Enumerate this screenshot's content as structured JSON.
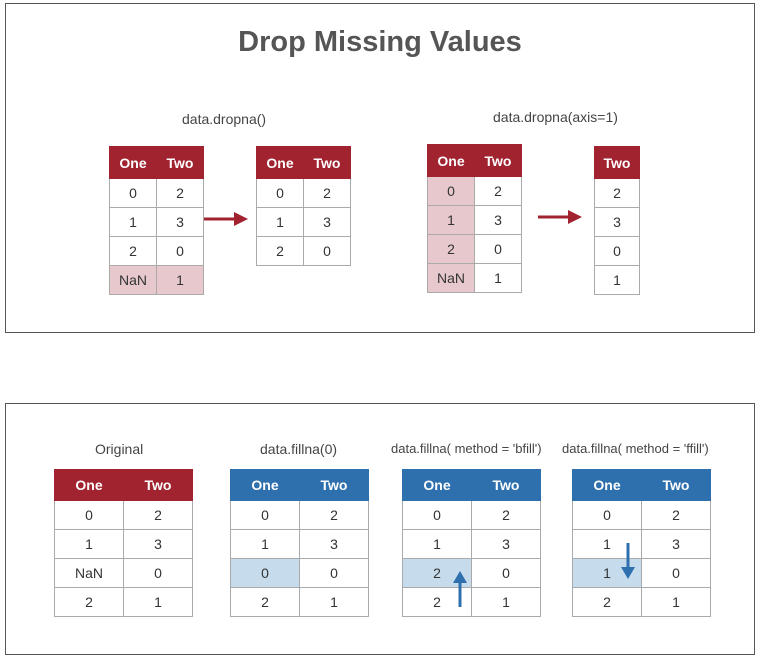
{
  "title": "Drop Missing Values",
  "colors": {
    "red_header": "#a0232f",
    "blue_header": "#2d70ad",
    "red_highlight": "#e7c9cd",
    "blue_highlight": "#c6dcec",
    "arrow_red": "#a0232f",
    "arrow_blue": "#2d70ad"
  },
  "top": {
    "captions": {
      "dropna": "data.dropna()",
      "dropna_axis": "data.dropna(axis=1)"
    },
    "tables": {
      "t1": {
        "headers": [
          "One",
          "Two"
        ],
        "rows": [
          [
            "0",
            "2"
          ],
          [
            "1",
            "3"
          ],
          [
            "2",
            "0"
          ],
          [
            "NaN",
            "1"
          ]
        ]
      },
      "t2": {
        "headers": [
          "One",
          "Two"
        ],
        "rows": [
          [
            "0",
            "2"
          ],
          [
            "1",
            "3"
          ],
          [
            "2",
            "0"
          ]
        ]
      },
      "t3": {
        "headers": [
          "One",
          "Two"
        ],
        "rows": [
          [
            "0",
            "2"
          ],
          [
            "1",
            "3"
          ],
          [
            "2",
            "0"
          ],
          [
            "NaN",
            "1"
          ]
        ]
      },
      "t4": {
        "headers": [
          "Two"
        ],
        "rows": [
          [
            "2"
          ],
          [
            "3"
          ],
          [
            "0"
          ],
          [
            "1"
          ]
        ]
      }
    }
  },
  "bottom": {
    "captions": {
      "original": "Original",
      "fill0": "data.fillna(0)",
      "bfill": "data.fillna( method = 'bfill')",
      "ffill": "data.fillna( method = 'ffill')"
    },
    "tables": {
      "b1": {
        "headers": [
          "One",
          "Two"
        ],
        "rows": [
          [
            "0",
            "2"
          ],
          [
            "1",
            "3"
          ],
          [
            "NaN",
            "0"
          ],
          [
            "2",
            "1"
          ]
        ]
      },
      "b2": {
        "headers": [
          "One",
          "Two"
        ],
        "rows": [
          [
            "0",
            "2"
          ],
          [
            "1",
            "3"
          ],
          [
            "0",
            "0"
          ],
          [
            "2",
            "1"
          ]
        ]
      },
      "b3": {
        "headers": [
          "One",
          "Two"
        ],
        "rows": [
          [
            "0",
            "2"
          ],
          [
            "1",
            "3"
          ],
          [
            "2",
            "0"
          ],
          [
            "2",
            "1"
          ]
        ]
      },
      "b4": {
        "headers": [
          "One",
          "Two"
        ],
        "rows": [
          [
            "0",
            "2"
          ],
          [
            "1",
            "3"
          ],
          [
            "1",
            "0"
          ],
          [
            "2",
            "1"
          ]
        ]
      }
    }
  }
}
